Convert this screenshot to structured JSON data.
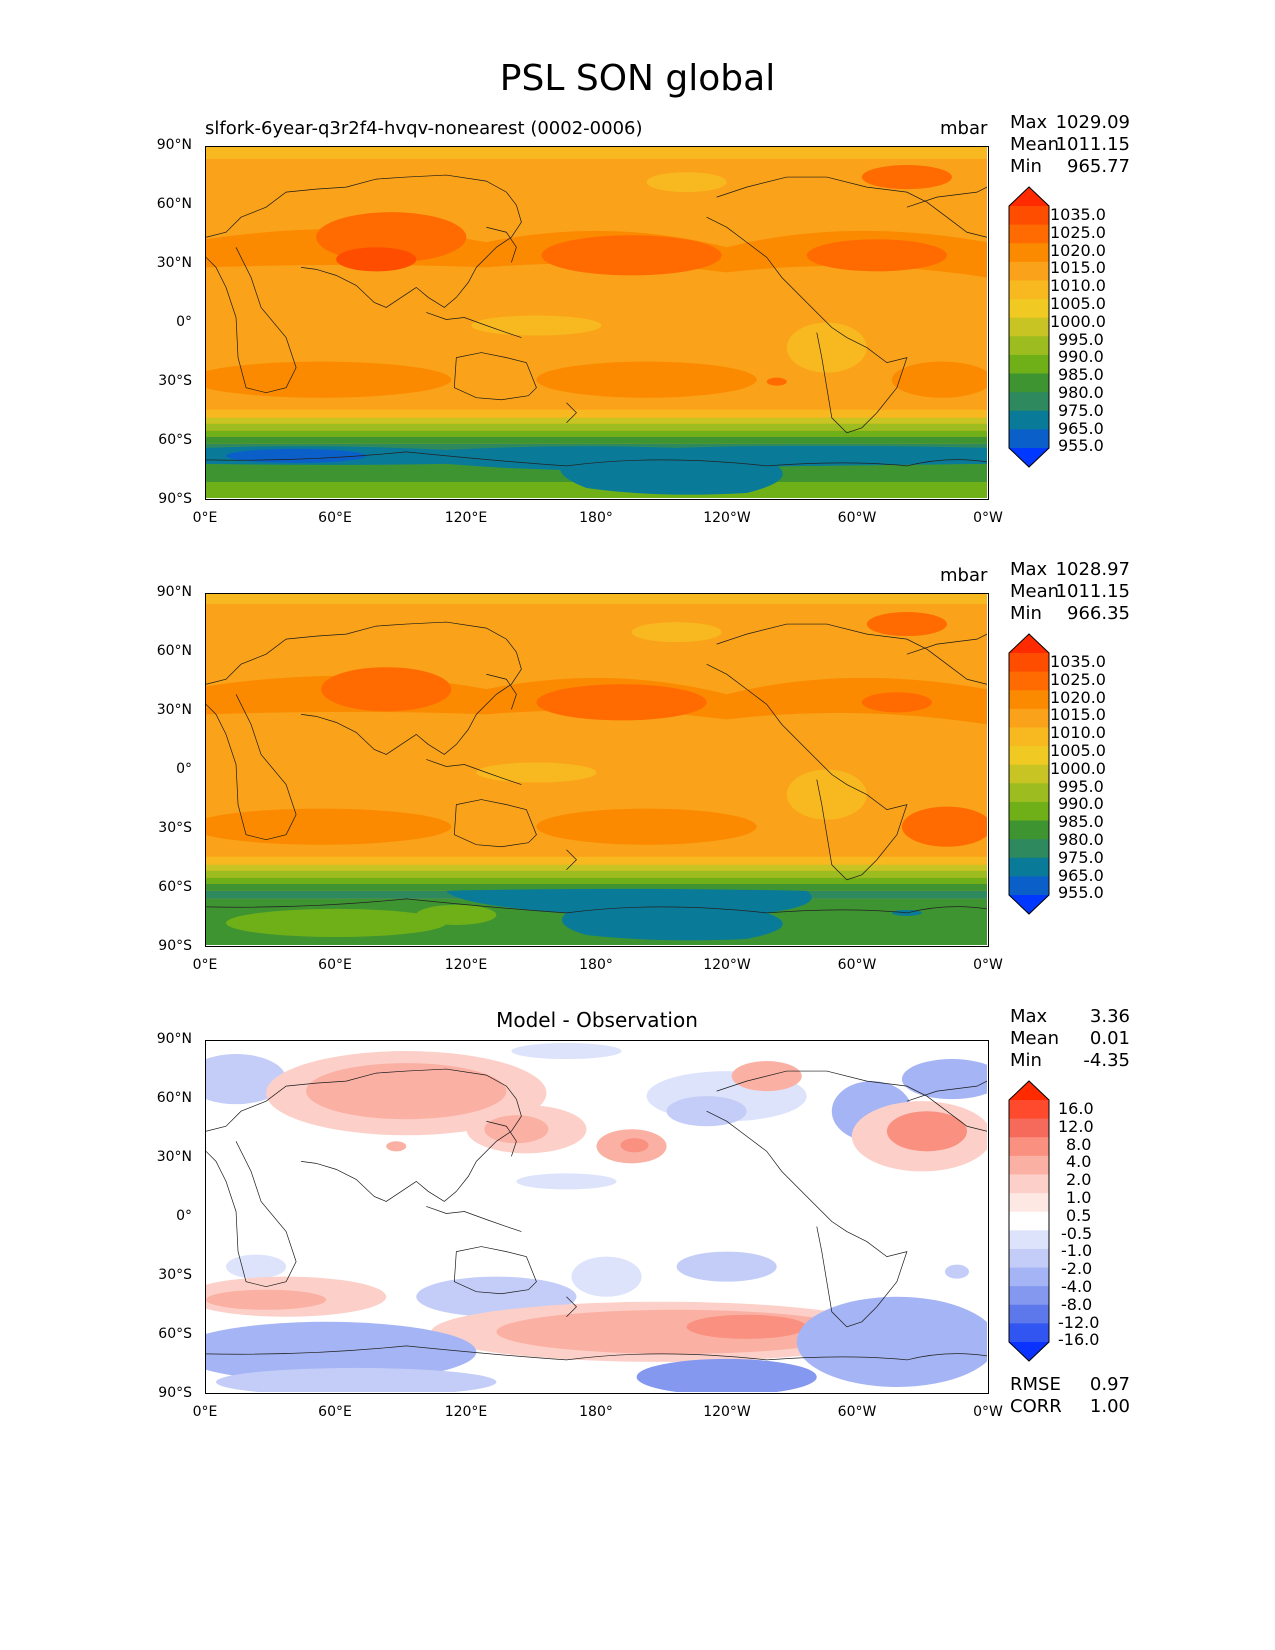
{
  "figure": {
    "title": "PSL SON global",
    "units_label": "mbar"
  },
  "panels": [
    {
      "id": "model",
      "left_title": "slfork-6year-q3r2f4-hvqv-nonearest (0002-0006)",
      "center_title": "",
      "units": "mbar",
      "stats": {
        "max_label": "Max",
        "max": "1029.09",
        "mean_label": "Mean",
        "mean": "1011.15",
        "min_label": "Min",
        "min": "965.77"
      }
    },
    {
      "id": "obs",
      "left_title": "",
      "center_title": "",
      "units": "mbar",
      "stats": {
        "max_label": "Max",
        "max": "1028.97",
        "mean_label": "Mean",
        "mean": "1011.15",
        "min_label": "Min",
        "min": "966.35"
      }
    },
    {
      "id": "diff",
      "left_title": "",
      "center_title": "Model - Observation",
      "units": "",
      "stats": {
        "max_label": "Max",
        "max": "3.36",
        "mean_label": "Mean",
        "mean": "0.01",
        "min_label": "Min",
        "min": "-4.35"
      },
      "extra": {
        "rmse_label": "RMSE",
        "rmse": "0.97",
        "corr_label": "CORR",
        "corr": "1.00"
      }
    }
  ],
  "axes": {
    "lat_ticks": [
      "90°N",
      "60°N",
      "30°N",
      "0°",
      "30°S",
      "60°S",
      "90°S"
    ],
    "lon_ticks": [
      "0°E",
      "60°E",
      "120°E",
      "180°",
      "120°W",
      "60°W",
      "0°W"
    ]
  },
  "colorbars": {
    "psl": {
      "labels": [
        "1035.0",
        "1025.0",
        "1020.0",
        "1015.0",
        "1010.0",
        "1005.0",
        "1000.0",
        "995.0",
        "990.0",
        "985.0",
        "980.0",
        "975.0",
        "965.0",
        "955.0"
      ],
      "colors": [
        "#ff2a00",
        "#ff4d00",
        "#ff6b00",
        "#fb8a00",
        "#faa219",
        "#f8b820",
        "#f0c922",
        "#c8c424",
        "#9cbc1f",
        "#6fb018",
        "#3f9432",
        "#2e8a5e",
        "#0a7a99",
        "#0a60c8",
        "#0038ff"
      ]
    },
    "diff": {
      "labels": [
        "16.0",
        "12.0",
        "8.0",
        "4.0",
        "2.0",
        "1.0",
        "0.5",
        "-0.5",
        "-1.0",
        "-2.0",
        "-4.0",
        "-8.0",
        "-12.0",
        "-16.0"
      ],
      "colors": [
        "#ff2a00",
        "#ff4a2e",
        "#f56a5a",
        "#f99080",
        "#fbb0a4",
        "#fcd0c8",
        "#fde8e4",
        "#ffffff",
        "#dde3fb",
        "#c3cdf8",
        "#a5b4f4",
        "#8598ef",
        "#5c78ea",
        "#3055f0",
        "#0a33ff"
      ]
    }
  },
  "chart_data": [
    {
      "type": "heatmap",
      "title": "slfork-6year-q3r2f4-hvqv-nonearest (0002-0006)",
      "variable": "PSL",
      "season": "SON",
      "units": "mbar",
      "x_range": [
        0,
        360
      ],
      "y_range": [
        -90,
        90
      ],
      "max": 1029.09,
      "mean": 1011.15,
      "min": 965.77
    },
    {
      "type": "heatmap",
      "title": "",
      "variable": "PSL",
      "season": "SON",
      "units": "mbar",
      "x_range": [
        0,
        360
      ],
      "y_range": [
        -90,
        90
      ],
      "max": 1028.97,
      "mean": 1011.15,
      "min": 966.35
    },
    {
      "type": "heatmap",
      "title": "Model - Observation",
      "units": "mbar",
      "x_range": [
        0,
        360
      ],
      "y_range": [
        -90,
        90
      ],
      "max": 3.36,
      "mean": 0.01,
      "min": -4.35,
      "rmse": 0.97,
      "corr": 1.0
    }
  ]
}
